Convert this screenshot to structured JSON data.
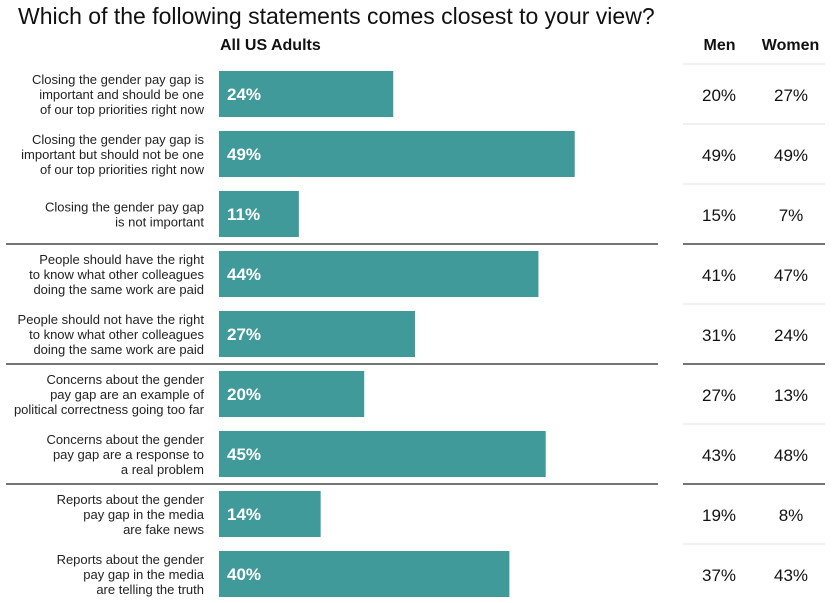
{
  "chart_data": {
    "type": "bar",
    "title": "Which of the following statements comes closest to your view?",
    "series_header": "All US Adults",
    "columns": [
      "Men",
      "Women"
    ],
    "xlim": [
      0,
      100
    ],
    "bar_color": "#419a9a",
    "categories": [
      [
        "Closing the gender pay gap is",
        "important and should be one",
        "of our top priorities right now"
      ],
      [
        "Closing the gender pay gap is",
        "important but should not be one",
        "of our top priorities right now"
      ],
      [
        "Closing the gender pay gap",
        "is not important"
      ],
      [
        "People should have the right",
        "to know what other colleagues",
        "doing the same work are paid"
      ],
      [
        "People should not have the right",
        "to know what other colleagues",
        "doing the same work are paid"
      ],
      [
        "Concerns about the gender",
        "pay gap are an example of",
        "political correctness going too far"
      ],
      [
        "Concerns about the gender",
        "pay gap are a response to",
        "a real problem"
      ],
      [
        "Reports about the gender",
        "pay gap in the media",
        "are fake news"
      ],
      [
        "Reports about the gender",
        "pay gap in the media",
        "are telling the truth"
      ]
    ],
    "values": [
      24,
      49,
      11,
      44,
      27,
      20,
      45,
      14,
      40
    ],
    "men": [
      "20%",
      "49%",
      "15%",
      "41%",
      "31%",
      "27%",
      "43%",
      "19%",
      "37%"
    ],
    "women": [
      "27%",
      "49%",
      "7%",
      "47%",
      "24%",
      "13%",
      "48%",
      "8%",
      "43%"
    ],
    "group_ends": [
      2,
      4,
      6
    ]
  }
}
